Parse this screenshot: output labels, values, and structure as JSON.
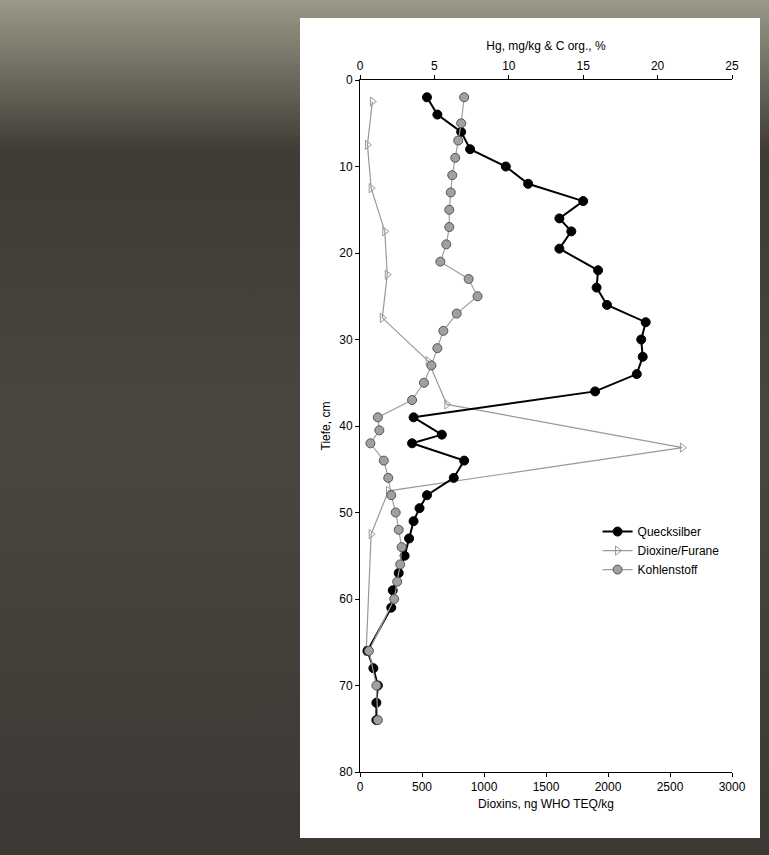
{
  "chart_data": {
    "type": "line",
    "xlabel": "Dioxins, ng WHO TEQ/kg",
    "x2label": "Hg, mg/kg & C org., %",
    "ylabel": "Tiefe, cm",
    "xlim": [
      0,
      3000
    ],
    "xticks": [
      0,
      500,
      1000,
      1500,
      2000,
      2500,
      3000
    ],
    "x2lim": [
      0,
      25
    ],
    "x2ticks": [
      0,
      5,
      10,
      15,
      20,
      25
    ],
    "ylim": [
      80,
      0
    ],
    "yticks": [
      0,
      10,
      20,
      30,
      40,
      50,
      60,
      70,
      80
    ],
    "grid": false,
    "legend": "right",
    "series": [
      {
        "name": "Quecksilber",
        "color": "#000000",
        "marker": "circle",
        "axis": "x2",
        "x": [
          4.5,
          5.2,
          6.8,
          7.4,
          9.8,
          11.3,
          15.0,
          13.4,
          14.2,
          13.4,
          16.0,
          15.9,
          16.6,
          19.2,
          18.9,
          19.0,
          18.6,
          15.8,
          3.6,
          5.5,
          3.5,
          7.0,
          6.3,
          4.5,
          4.0,
          3.6,
          3.3,
          3.0,
          2.6,
          2.2,
          2.1,
          0.5,
          0.9,
          1.2,
          1.1,
          1.1
        ],
        "y": [
          2,
          4,
          6,
          8,
          10,
          12,
          14,
          16,
          17.5,
          19.5,
          22,
          24,
          26,
          28,
          30,
          32,
          34,
          36,
          39,
          41,
          42,
          44,
          46,
          48,
          49.5,
          51,
          53,
          55,
          57,
          59,
          61,
          66,
          68,
          70,
          72,
          74
        ]
      },
      {
        "name": "Dioxine/Furane",
        "color": "#999999",
        "marker": "triangle-right-open",
        "axis": "x",
        "x": [
          100,
          60,
          90,
          200,
          220,
          180,
          550,
          700,
          2600,
          230,
          90,
          50
        ],
        "y": [
          2.5,
          7.5,
          12.5,
          17.5,
          22.5,
          27.5,
          32.5,
          37.5,
          42.5,
          47.5,
          52.5,
          66
        ]
      },
      {
        "name": "Kohlenstoff",
        "color": "#a0a0a0",
        "marker": "circle",
        "axis": "x2",
        "x": [
          7.0,
          6.8,
          6.6,
          6.4,
          6.2,
          6.1,
          6.0,
          6.0,
          5.8,
          5.4,
          7.3,
          7.9,
          6.5,
          5.6,
          5.2,
          4.8,
          4.3,
          3.5,
          1.2,
          1.3,
          0.7,
          1.6,
          1.9,
          2.1,
          2.4,
          2.6,
          2.8,
          2.7,
          2.5,
          2.3,
          0.6,
          1.1,
          1.2
        ],
        "y": [
          2,
          5,
          7,
          9,
          11,
          13,
          15,
          17,
          19,
          21,
          23,
          25,
          27,
          29,
          31,
          33,
          35,
          37,
          39,
          40.5,
          42,
          44,
          46,
          48,
          50,
          52,
          54,
          56,
          58,
          60,
          66,
          70,
          74
        ]
      }
    ]
  }
}
